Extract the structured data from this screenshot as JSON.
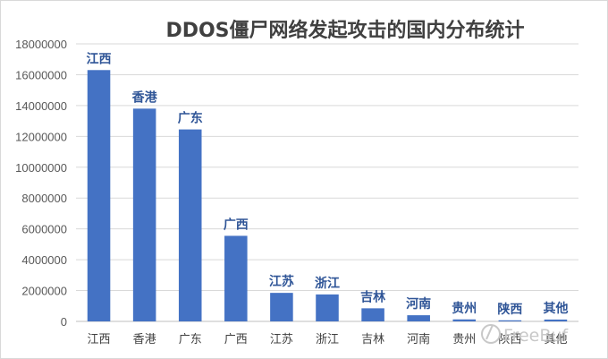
{
  "chart_data": {
    "type": "bar",
    "title": "DDOS僵尸网络发起攻击的国内分布统计",
    "categories": [
      "江西",
      "香港",
      "广东",
      "广西",
      "江苏",
      "浙江",
      "吉林",
      "河南",
      "贵州",
      "陕西",
      "其他"
    ],
    "values": [
      16300000,
      13800000,
      12450000,
      5550000,
      1850000,
      1750000,
      850000,
      400000,
      130000,
      70000,
      120000
    ],
    "data_labels": [
      "江西",
      "香港",
      "广东",
      "广西",
      "江苏",
      "浙江",
      "吉林",
      "河南",
      "贵州",
      "陕西",
      "其他"
    ],
    "ylim": [
      0,
      18000000
    ],
    "yticks": [
      0,
      2000000,
      4000000,
      6000000,
      8000000,
      10000000,
      12000000,
      14000000,
      16000000,
      18000000
    ],
    "grid": true,
    "legend": "none",
    "bar_color": "#4472c4",
    "data_label_color": "#2f5597"
  },
  "watermark": {
    "text": "FreeBuf",
    "icon": "freebuf-logo-icon"
  }
}
